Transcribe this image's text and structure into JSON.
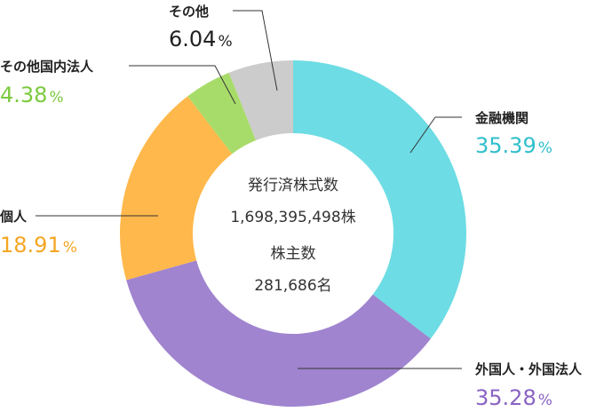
{
  "chart_data": {
    "type": "pie",
    "variant": "donut",
    "title": "",
    "unit": "%",
    "slices": [
      {
        "label": "金融機関",
        "value": 35.39,
        "display": "35.39",
        "color": "#6ddce4"
      },
      {
        "label": "外国人・外国法人",
        "value": 35.28,
        "display": "35.28",
        "color": "#a084cf"
      },
      {
        "label": "個人",
        "value": 18.91,
        "display": "18.91",
        "color": "#ffb84b"
      },
      {
        "label": "その他国内法人",
        "value": 4.38,
        "display": "4.38",
        "color": "#a8dc6a"
      },
      {
        "label": "その他",
        "value": 6.04,
        "display": "6.04",
        "color": "#cccccc"
      }
    ],
    "label_colors": [
      "#2fbfcc",
      "#8a63c4",
      "#f5a623",
      "#7cc93f",
      "#222222"
    ],
    "center": {
      "line1": "発行済株式数",
      "line2_number": "1,698,395,498",
      "line2_unit": "株",
      "line3": "株主数",
      "line4_number": "281,686",
      "line4_unit": "名"
    }
  }
}
